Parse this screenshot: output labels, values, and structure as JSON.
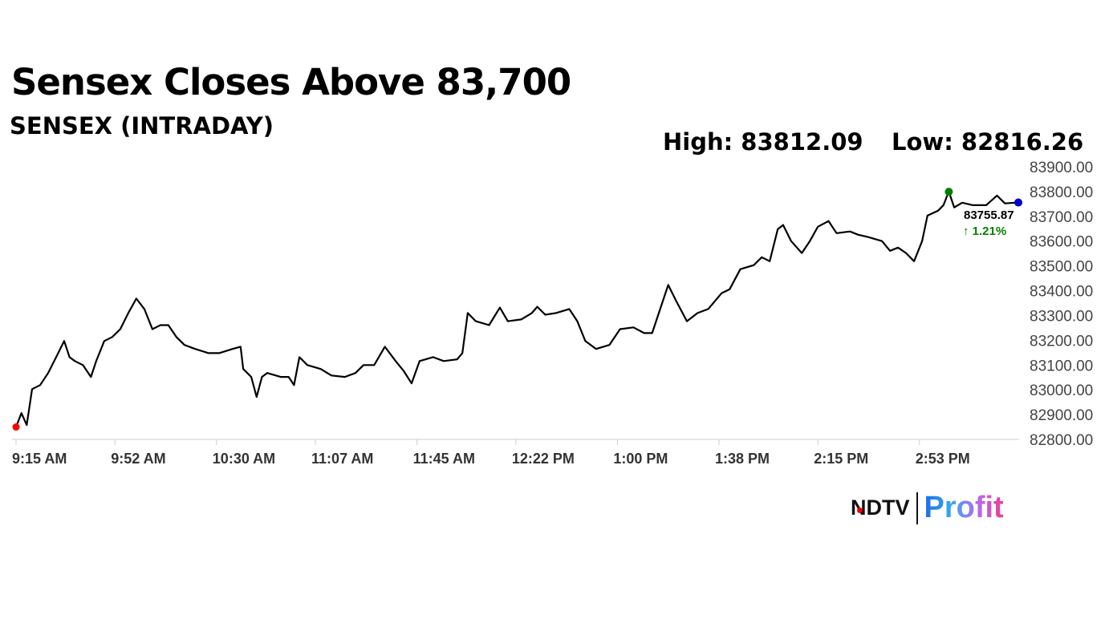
{
  "chart_data": {
    "type": "line",
    "title": "Sensex Closes Above 83,700",
    "subtitle": "SENSEX (INTRADAY)",
    "high_label": "High: 83812.09",
    "low_label": "Low: 82816.26",
    "high": 83812.09,
    "low": 82816.26,
    "last_value_label": "83755.87",
    "change_label": "1.21%",
    "change_direction": "up",
    "colors": {
      "line": "#000000",
      "low_marker": "#ff0000",
      "high_marker": "#008000",
      "last_marker": "#0000cc",
      "change": "#008000",
      "axis_text": "#444444"
    },
    "ylim": [
      82800,
      83900
    ],
    "y_ticks": [
      "82800.00",
      "82900.00",
      "83000.00",
      "83100.00",
      "83200.00",
      "83300.00",
      "83400.00",
      "83500.00",
      "83600.00",
      "83700.00",
      "83800.00",
      "83900.00"
    ],
    "x_range": [
      "09:15",
      "15:30"
    ],
    "x_ticks": [
      {
        "time": "09:15",
        "label": "9:15 AM"
      },
      {
        "time": "09:52",
        "label": "9:52 AM"
      },
      {
        "time": "10:30",
        "label": "10:30 AM"
      },
      {
        "time": "11:07",
        "label": "11:07 AM"
      },
      {
        "time": "11:45",
        "label": "11:45 AM"
      },
      {
        "time": "12:22",
        "label": "12:22 PM"
      },
      {
        "time": "13:00",
        "label": "1:00 PM"
      },
      {
        "time": "13:38",
        "label": "1:38 PM"
      },
      {
        "time": "14:15",
        "label": "2:15 PM"
      },
      {
        "time": "14:53",
        "label": "2:53 PM"
      }
    ],
    "grid": false,
    "markers": {
      "low_time": "09:15",
      "high_time": "15:04",
      "last_time": "15:30"
    },
    "points": [
      [
        "09:15",
        82850
      ],
      [
        "09:17",
        82906
      ],
      [
        "09:19",
        82858
      ],
      [
        "09:21",
        83003
      ],
      [
        "09:24",
        83019
      ],
      [
        "09:27",
        83068
      ],
      [
        "09:30",
        83132
      ],
      [
        "09:33",
        83197
      ],
      [
        "09:35",
        83132
      ],
      [
        "09:37",
        83116
      ],
      [
        "09:40",
        83100
      ],
      [
        "09:43",
        83052
      ],
      [
        "09:45",
        83116
      ],
      [
        "09:48",
        83197
      ],
      [
        "09:51",
        83213
      ],
      [
        "09:54",
        83245
      ],
      [
        "09:57",
        83310
      ],
      [
        "10:00",
        83368
      ],
      [
        "10:03",
        83326
      ],
      [
        "10:06",
        83245
      ],
      [
        "10:09",
        83261
      ],
      [
        "10:12",
        83261
      ],
      [
        "10:15",
        83213
      ],
      [
        "10:18",
        83181
      ],
      [
        "10:22",
        83165
      ],
      [
        "10:27",
        83148
      ],
      [
        "10:31",
        83148
      ],
      [
        "10:36",
        83165
      ],
      [
        "10:39",
        83174
      ],
      [
        "10:40",
        83084
      ],
      [
        "10:43",
        83052
      ],
      [
        "10:45",
        82971
      ],
      [
        "10:47",
        83052
      ],
      [
        "10:49",
        83068
      ],
      [
        "10:54",
        83052
      ],
      [
        "10:57",
        83052
      ],
      [
        "10:59",
        83019
      ],
      [
        "11:01",
        83132
      ],
      [
        "11:04",
        83100
      ],
      [
        "11:09",
        83084
      ],
      [
        "11:13",
        83058
      ],
      [
        "11:18",
        83052
      ],
      [
        "11:22",
        83068
      ],
      [
        "11:25",
        83100
      ],
      [
        "11:29",
        83100
      ],
      [
        "11:33",
        83174
      ],
      [
        "11:37",
        83116
      ],
      [
        "11:40",
        83077
      ],
      [
        "11:43",
        83026
      ],
      [
        "11:46",
        83116
      ],
      [
        "11:51",
        83132
      ],
      [
        "11:55",
        83116
      ],
      [
        "12:00",
        83123
      ],
      [
        "12:02",
        83148
      ],
      [
        "12:04",
        83310
      ],
      [
        "12:07",
        83277
      ],
      [
        "12:12",
        83261
      ],
      [
        "12:16",
        83332
      ],
      [
        "12:19",
        83277
      ],
      [
        "12:24",
        83284
      ],
      [
        "12:28",
        83310
      ],
      [
        "12:30",
        83335
      ],
      [
        "12:33",
        83303
      ],
      [
        "12:37",
        83310
      ],
      [
        "12:42",
        83326
      ],
      [
        "12:45",
        83277
      ],
      [
        "12:48",
        83197
      ],
      [
        "12:52",
        83165
      ],
      [
        "12:57",
        83181
      ],
      [
        "13:01",
        83245
      ],
      [
        "13:06",
        83252
      ],
      [
        "13:10",
        83229
      ],
      [
        "13:13",
        83229
      ],
      [
        "13:16",
        83326
      ],
      [
        "13:19",
        83423
      ],
      [
        "13:22",
        83358
      ],
      [
        "13:26",
        83277
      ],
      [
        "13:30",
        83310
      ],
      [
        "13:34",
        83326
      ],
      [
        "13:39",
        83390
      ],
      [
        "13:42",
        83406
      ],
      [
        "13:46",
        83487
      ],
      [
        "13:51",
        83503
      ],
      [
        "13:54",
        83535
      ],
      [
        "13:57",
        83519
      ],
      [
        "14:00",
        83648
      ],
      [
        "14:02",
        83665
      ],
      [
        "14:05",
        83600
      ],
      [
        "14:09",
        83552
      ],
      [
        "14:12",
        83600
      ],
      [
        "14:15",
        83658
      ],
      [
        "14:19",
        83681
      ],
      [
        "14:22",
        83632
      ],
      [
        "14:27",
        83639
      ],
      [
        "14:30",
        83626
      ],
      [
        "14:34",
        83616
      ],
      [
        "14:39",
        83600
      ],
      [
        "14:42",
        83561
      ],
      [
        "14:45",
        83574
      ],
      [
        "14:48",
        83552
      ],
      [
        "14:51",
        83519
      ],
      [
        "14:54",
        83600
      ],
      [
        "14:56",
        83703
      ],
      [
        "15:00",
        83723
      ],
      [
        "15:02",
        83745
      ],
      [
        "15:04",
        83800
      ],
      [
        "15:06",
        83736
      ],
      [
        "15:09",
        83755
      ],
      [
        "15:13",
        83745
      ],
      [
        "15:18",
        83745
      ],
      [
        "15:22",
        83784
      ],
      [
        "15:25",
        83752
      ],
      [
        "15:30",
        83755.87
      ]
    ]
  },
  "branding": {
    "ndtv": "NDTV",
    "profit": "Profit"
  }
}
